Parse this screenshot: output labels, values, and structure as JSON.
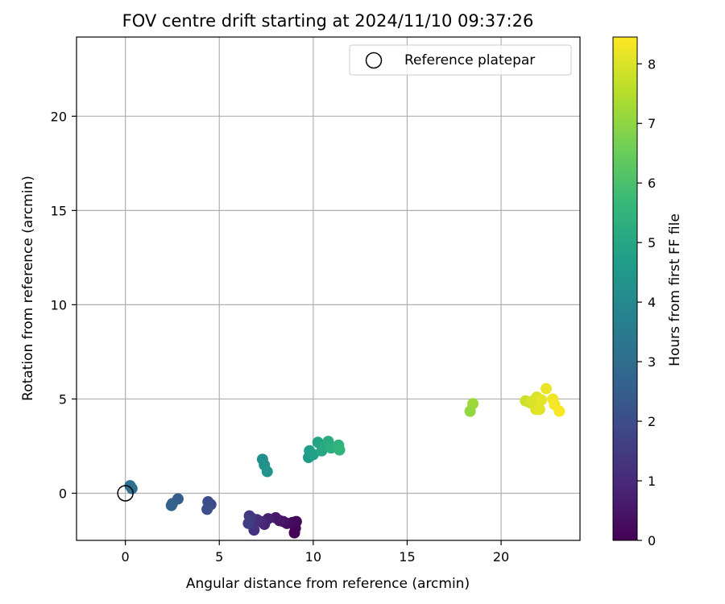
{
  "chart_data": {
    "type": "scatter",
    "title": "FOV centre drift starting at 2024/11/10 09:37:26",
    "xlabel": "Angular distance from reference (arcmin)",
    "ylabel": "Rotation from reference (arcmin)",
    "xlim": [
      -2.6,
      24.2
    ],
    "ylim": [
      -2.5,
      24.2
    ],
    "xticks": [
      0,
      5,
      10,
      15,
      20
    ],
    "yticks": [
      0,
      5,
      10,
      15,
      20
    ],
    "grid": true,
    "legend": {
      "position": "top-right",
      "entries": [
        "Reference platepar"
      ]
    },
    "reference_point": {
      "x": 0,
      "y": 0
    },
    "colorbar": {
      "label": "Hours from first FF file",
      "range": [
        0,
        8.45
      ],
      "ticks": [
        0,
        1,
        2,
        3,
        4,
        5,
        6,
        7,
        8
      ]
    },
    "colormap": [
      "#440154",
      "#482878",
      "#3e4989",
      "#31688e",
      "#26828e",
      "#1f9e89",
      "#35b779",
      "#6ece58",
      "#b5de2b",
      "#fde725"
    ],
    "points": [
      {
        "x": 9.0,
        "y": -2.1,
        "hours": 0.05
      },
      {
        "x": 9.05,
        "y": -1.85,
        "hours": 0.1
      },
      {
        "x": 9.1,
        "y": -1.5,
        "hours": 0.15
      },
      {
        "x": 8.9,
        "y": -1.55,
        "hours": 0.2
      },
      {
        "x": 8.6,
        "y": -1.6,
        "hours": 0.3
      },
      {
        "x": 8.4,
        "y": -1.5,
        "hours": 0.4
      },
      {
        "x": 8.2,
        "y": -1.45,
        "hours": 0.5
      },
      {
        "x": 8.0,
        "y": -1.3,
        "hours": 0.6
      },
      {
        "x": 7.6,
        "y": -1.35,
        "hours": 0.75
      },
      {
        "x": 7.4,
        "y": -1.65,
        "hours": 0.85
      },
      {
        "x": 7.2,
        "y": -1.5,
        "hours": 0.95
      },
      {
        "x": 7.0,
        "y": -1.4,
        "hours": 1.1
      },
      {
        "x": 6.85,
        "y": -1.95,
        "hours": 1.2
      },
      {
        "x": 6.7,
        "y": -1.3,
        "hours": 1.3
      },
      {
        "x": 6.6,
        "y": -1.2,
        "hours": 1.45
      },
      {
        "x": 6.55,
        "y": -1.6,
        "hours": 1.55
      },
      {
        "x": 4.55,
        "y": -0.6,
        "hours": 1.85
      },
      {
        "x": 4.4,
        "y": -0.45,
        "hours": 1.95
      },
      {
        "x": 4.35,
        "y": -0.85,
        "hours": 2.05
      },
      {
        "x": 2.8,
        "y": -0.3,
        "hours": 2.5
      },
      {
        "x": 2.5,
        "y": -0.55,
        "hours": 2.6
      },
      {
        "x": 2.45,
        "y": -0.65,
        "hours": 2.65
      },
      {
        "x": 0.35,
        "y": 0.25,
        "hours": 3.05
      },
      {
        "x": 0.25,
        "y": 0.4,
        "hours": 3.15
      },
      {
        "x": 7.3,
        "y": 1.8,
        "hours": 4.2
      },
      {
        "x": 7.4,
        "y": 1.5,
        "hours": 4.3
      },
      {
        "x": 7.55,
        "y": 1.15,
        "hours": 4.4
      },
      {
        "x": 9.75,
        "y": 1.9,
        "hours": 4.6
      },
      {
        "x": 9.8,
        "y": 2.25,
        "hours": 4.7
      },
      {
        "x": 10.0,
        "y": 2.05,
        "hours": 4.8
      },
      {
        "x": 10.25,
        "y": 2.7,
        "hours": 4.9
      },
      {
        "x": 10.45,
        "y": 2.25,
        "hours": 5.0
      },
      {
        "x": 10.6,
        "y": 2.5,
        "hours": 5.1
      },
      {
        "x": 10.8,
        "y": 2.75,
        "hours": 5.2
      },
      {
        "x": 10.95,
        "y": 2.4,
        "hours": 5.3
      },
      {
        "x": 11.35,
        "y": 2.55,
        "hours": 5.4
      },
      {
        "x": 11.4,
        "y": 2.3,
        "hours": 5.5
      },
      {
        "x": 18.35,
        "y": 4.35,
        "hours": 7.05
      },
      {
        "x": 18.5,
        "y": 4.75,
        "hours": 7.15
      },
      {
        "x": 21.3,
        "y": 4.9,
        "hours": 7.8
      },
      {
        "x": 21.55,
        "y": 4.8,
        "hours": 7.9
      },
      {
        "x": 21.7,
        "y": 4.9,
        "hours": 7.95
      },
      {
        "x": 21.9,
        "y": 5.1,
        "hours": 8.0
      },
      {
        "x": 21.85,
        "y": 4.45,
        "hours": 8.05
      },
      {
        "x": 22.05,
        "y": 4.45,
        "hours": 8.1
      },
      {
        "x": 22.15,
        "y": 4.95,
        "hours": 8.15
      },
      {
        "x": 22.4,
        "y": 5.55,
        "hours": 8.2
      },
      {
        "x": 22.75,
        "y": 5.0,
        "hours": 8.3
      },
      {
        "x": 22.85,
        "y": 4.7,
        "hours": 8.35
      },
      {
        "x": 23.1,
        "y": 4.35,
        "hours": 8.4
      }
    ]
  }
}
